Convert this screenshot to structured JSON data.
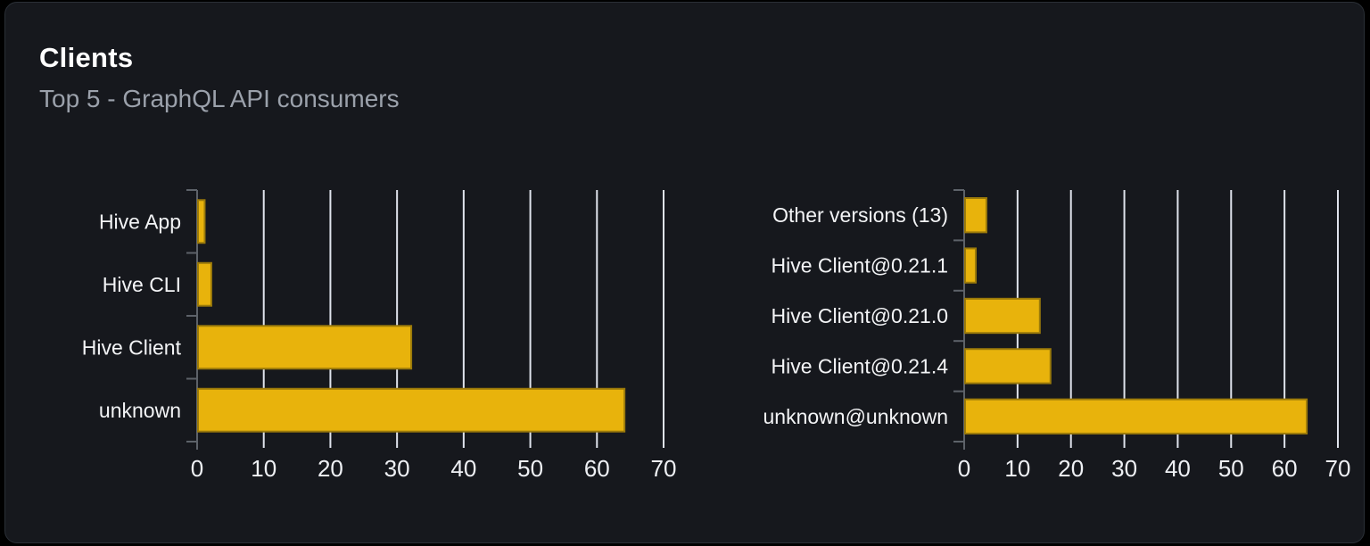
{
  "header": {
    "title": "Clients",
    "subtitle": "Top 5 - GraphQL API consumers"
  },
  "colors": {
    "page_bg": "#000000",
    "card_bg": "#16181d",
    "card_border": "#2a2f36",
    "title": "#ffffff",
    "subtitle": "#9ba1ab",
    "bar_fill": "#e8b30c",
    "bar_border": "#9b7a0a",
    "gridline": "#dfe3ec",
    "axis": "#5d6269",
    "category_label": "#f3f4f6",
    "tick_label": "#eef0f4"
  },
  "chart_data": [
    {
      "type": "bar",
      "orientation": "horizontal",
      "name": "clients",
      "categories": [
        "Hive App",
        "Hive CLI",
        "Hive Client",
        "unknown"
      ],
      "values": [
        1,
        2,
        32,
        64
      ],
      "xlim": [
        0,
        70
      ],
      "x_ticks": [
        0,
        10,
        20,
        30,
        40,
        50,
        60,
        70
      ],
      "xlabel": "",
      "ylabel": "",
      "grid": true,
      "legend": false
    },
    {
      "type": "bar",
      "orientation": "horizontal",
      "name": "client-versions",
      "categories": [
        "Other versions (13)",
        "Hive Client@0.21.1",
        "Hive Client@0.21.0",
        "Hive Client@0.21.4",
        "unknown@unknown"
      ],
      "values": [
        4,
        2,
        14,
        16,
        64
      ],
      "xlim": [
        0,
        70
      ],
      "x_ticks": [
        0,
        10,
        20,
        30,
        40,
        50,
        60,
        70
      ],
      "xlabel": "",
      "ylabel": "",
      "grid": true,
      "legend": false
    }
  ]
}
